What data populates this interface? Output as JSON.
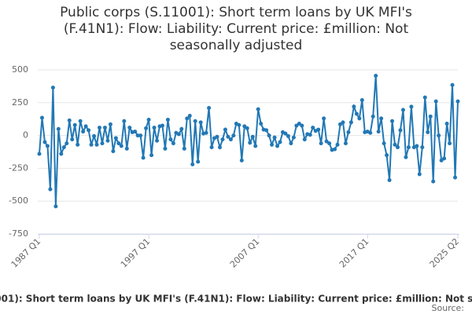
{
  "chart_data": {
    "type": "line",
    "title": "Public corps (S.11001): Short term loans by UK MFI's (F.41N1): Flow: Liability: Current price: £million: Not seasonally adjusted",
    "source": "Source:",
    "categories": [
      "1987 Q1",
      null,
      null,
      null,
      null,
      null,
      null,
      null,
      null,
      null,
      null,
      null,
      null,
      null,
      null,
      null,
      null,
      null,
      null,
      null,
      null,
      null,
      null,
      null,
      null,
      null,
      null,
      null,
      null,
      null,
      null,
      null,
      null,
      null,
      null,
      null,
      null,
      null,
      null,
      null,
      "1997 Q1",
      null,
      null,
      null,
      null,
      null,
      null,
      null,
      null,
      null,
      null,
      null,
      null,
      null,
      null,
      null,
      null,
      null,
      null,
      null,
      null,
      null,
      null,
      null,
      null,
      null,
      null,
      null,
      null,
      null,
      null,
      null,
      null,
      null,
      null,
      null,
      null,
      null,
      null,
      null,
      "2007 Q1",
      null,
      null,
      null,
      null,
      null,
      null,
      null,
      null,
      null,
      null,
      null,
      null,
      null,
      null,
      null,
      null,
      null,
      null,
      null,
      null,
      null,
      null,
      null,
      null,
      null,
      null,
      null,
      null,
      null,
      null,
      null,
      null,
      null,
      null,
      null,
      null,
      null,
      null,
      null,
      "2017 Q1",
      null,
      null,
      null,
      null,
      null,
      null,
      null,
      null,
      null,
      null,
      null,
      null,
      null,
      null,
      null,
      null,
      null,
      null,
      null,
      null,
      null,
      null,
      null,
      null,
      null,
      null,
      null,
      null,
      null,
      null,
      null,
      null,
      "2025 Q2"
    ],
    "series": [
      {
        "name": "Public corps (S.11001): Short term loans by UK MFI's (F.41N1): Flow: Liability: Current price: £million: Not seasonally adjusted",
        "color": "#2278b5",
        "values": [
          -140,
          135,
          -50,
          -80,
          -410,
          365,
          -540,
          50,
          -140,
          -90,
          -60,
          115,
          -30,
          80,
          -70,
          110,
          30,
          70,
          40,
          -70,
          -5,
          -70,
          60,
          -60,
          60,
          -40,
          85,
          -120,
          -20,
          -60,
          -80,
          110,
          -100,
          60,
          25,
          30,
          0,
          0,
          -170,
          55,
          120,
          -150,
          60,
          -40,
          70,
          75,
          -100,
          120,
          -30,
          -60,
          20,
          10,
          50,
          -100,
          130,
          150,
          -220,
          110,
          -200,
          100,
          15,
          20,
          210,
          -90,
          -20,
          -10,
          -90,
          -30,
          45,
          -10,
          -30,
          0,
          90,
          80,
          -190,
          70,
          55,
          -55,
          -10,
          -80,
          200,
          90,
          45,
          40,
          0,
          -70,
          -15,
          -80,
          -50,
          25,
          15,
          -5,
          -60,
          -15,
          75,
          90,
          75,
          -30,
          10,
          5,
          60,
          35,
          45,
          -60,
          130,
          -45,
          -60,
          -110,
          -105,
          -70,
          85,
          100,
          -60,
          25,
          100,
          220,
          165,
          130,
          270,
          25,
          30,
          20,
          145,
          455,
          30,
          130,
          -60,
          -150,
          -340,
          110,
          -70,
          -90,
          40,
          195,
          -165,
          -90,
          220,
          -90,
          -80,
          -295,
          -90,
          290,
          25,
          145,
          -350,
          260,
          0,
          -190,
          -175,
          90,
          -60,
          385,
          -320,
          260
        ]
      }
    ],
    "ylim": [
      -750,
      500
    ],
    "yticks": [
      500,
      250,
      0,
      -250,
      -500,
      -750
    ],
    "grid": true
  }
}
